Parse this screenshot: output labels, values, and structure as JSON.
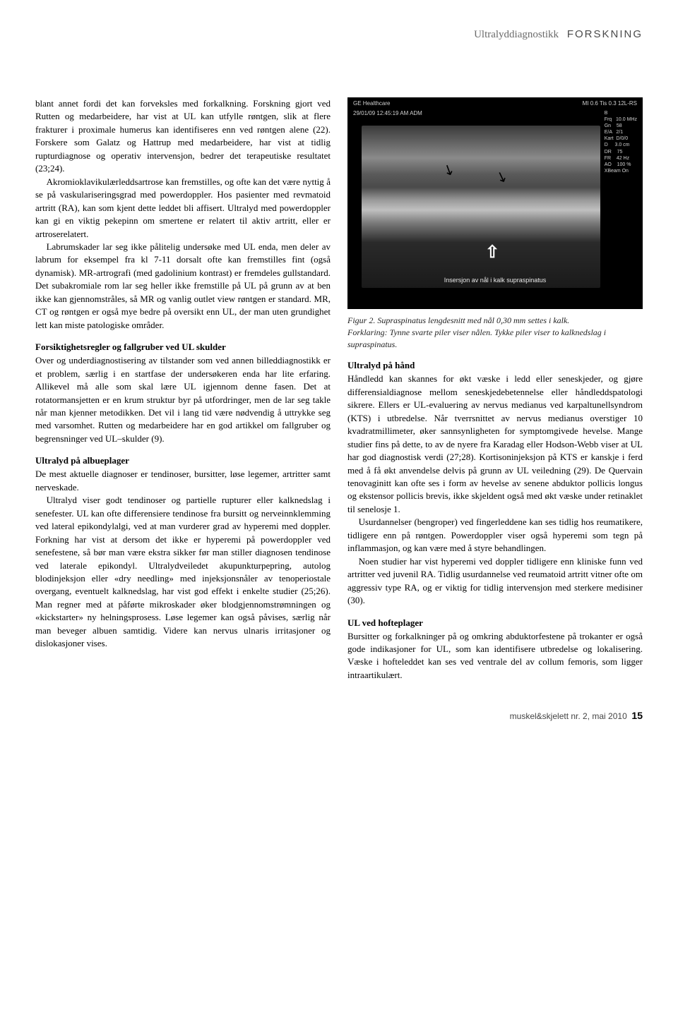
{
  "header": {
    "topic": "Ultralyddiagnostikk",
    "section": "FORSKNING"
  },
  "left": {
    "p1": "blant annet fordi det kan forveksles med forkalkning. Forskning gjort ved Rutten og medarbeidere, har vist at UL kan utfylle røntgen, slik at flere frakturer i proximale humerus kan identifiseres enn ved røntgen alene (22). Forskere som Galatz og Hattrup med medarbeidere, har vist at tidlig rupturdiagnose og operativ intervensjon, bedrer det terapeutiske resultatet (23;24).",
    "p2": "Akromioklavikulærleddsartrose kan fremstilles, og ofte kan det være nyttig å se på vaskulariseringsgrad med powerdoppler. Hos pasienter med revmatoid artritt (RA), kan som kjent dette leddet bli affisert. Ultralyd med powerdoppler kan gi en viktig pekepinn om smertene er relatert til aktiv artritt, eller er artroserelatert.",
    "p3": "Labrumskader lar seg ikke pålitelig undersøke med UL enda, men deler av labrum for eksempel fra kl 7-11 dorsalt ofte kan fremstilles fint (også dynamisk). MR-artrografi (med gadolinium kontrast) er fremdeles gullstandard. Det subakromiale rom lar seg heller ikke fremstille på UL på grunn av at ben ikke kan gjennomstråles, så MR og vanlig outlet view røntgen er standard. MR, CT og røntgen er også mye bedre på oversikt enn UL, der man uten grundighet lett kan miste patologiske områder.",
    "h1": "Forsiktighetsregler og fallgruber ved UL skulder",
    "p4": "Over og underdiagnostisering av tilstander som ved annen billeddiagnostikk er et problem, særlig i en startfase der undersøkeren enda har lite erfaring. Allikevel må alle som skal lære UL igjennom denne fasen. Det at rotatormansjetten er en krum struktur byr på utfordringer, men de lar seg takle når man kjenner metodikken. Det vil i lang tid være nødvendig å uttrykke seg med varsomhet. Rutten og medarbeidere har en god artikkel om fallgruber og begrensninger ved UL–skulder (9).",
    "h2": "Ultralyd på albueplager",
    "p5": "De mest aktuelle diagnoser er tendinoser, bursitter, løse legemer, artritter samt nerveskade.",
    "p6": "Ultralyd viser godt tendinoser og partielle rupturer eller kalknedslag i senefester. UL kan ofte differensiere tendinose fra bursitt og nerveinnklemming ved lateral epikondylalgi, ved at man vurderer grad av hyperemi med doppler. Forkning har vist at dersom det ikke er hyperemi på powerdoppler ved senefestene, så bør man være ekstra sikker før man stiller diagnosen tendinose ved laterale epikondyl. Ultralydveiledet akupunkturpepring, autolog blodinjeksjon eller «dry needling» med injeksjonsnåler av tenoperiostale overgang, eventuelt kalknedslag, har vist god effekt i enkelte studier (25;26). Man regner med at påførte mikroskader øker blodgjennomstrømningen og «kickstarter» ny helningsprosess. Løse legemer kan også påvises, særlig når man beveger albuen samtidig. Videre kan nervus ulnaris irritasjoner og dislokasjoner vises."
  },
  "figure": {
    "device": "GE Healthcare",
    "mode": "MI 0.6   Tis 0.3   12L-RS",
    "datetime": "29/01/09 12:45:19 AM   ADM",
    "params": "B\nFrq   10.0 MHz\nGn    58\nE/A   2/1\nKart  D/0/0\nD     3.0 cm\nDR    75\nFR    42 Hz\nAO    100 %\nXBeam On",
    "imglabel": "Insersjon av nål i kalk supraspinatus",
    "caption_lead": "Figur 2. Supraspinatus lengdesnitt med nål 0,30 mm settes i kalk.",
    "caption_rest": "Forklaring: Tynne svarte piler viser nålen. Tykke piler viser to kalknedslag i supraspinatus."
  },
  "right": {
    "h1": "Ultralyd på hånd",
    "p1": "Håndledd kan skannes for økt væske i ledd eller seneskjeder, og gjøre differensialdiagnose mellom seneskjedebetennelse eller håndleddspatologi sikrere. Ellers er UL-evaluering av nervus medianus ved karpaltunellsyndrom (KTS) i utbredelse. Når tverrsnittet av nervus medianus overstiger 10 kvadratmillimeter, øker sannsynligheten for symptomgivede hevelse. Mange studier fins på dette, to av de nyere fra Karadag eller Hodson-Webb viser at UL har god diagnostisk verdi (27;28). Kortisoninjeksjon på KTS er kanskje i ferd med å få økt anvendelse delvis på grunn av UL veiledning (29). De Quervain tenovaginitt kan ofte ses i form av hevelse av senene abduktor pollicis longus og ekstensor pollicis brevis, ikke skjeldent også med økt væske under retinaklet til senelosje 1.",
    "p2": "Usurdannelser (bengroper) ved fingerleddene kan ses tidlig hos reumatikere, tidligere enn på røntgen. Powerdoppler viser også hyperemi som tegn på inflammasjon, og kan være med å styre behandlingen.",
    "p3": "Noen studier har vist hyperemi ved doppler tidligere enn kliniske funn ved artritter ved juvenil RA. Tidlig usurdannelse ved reumatoid artritt vitner ofte om aggressiv type RA, og er viktig for tidlig intervensjon med sterkere medisiner (30).",
    "h2": "UL ved hofteplager",
    "p4": "Bursitter og forkalkninger på og omkring abduktorfestene på trokanter er også gode indikasjoner for UL, som kan identifisere utbredelse og lokalisering. Væske i hofteleddet kan ses ved ventrale del av collum femoris, som ligger intraartikulært."
  },
  "footer": {
    "journal": "muskel&skjelett nr. 2, mai 2010",
    "page": "15"
  }
}
